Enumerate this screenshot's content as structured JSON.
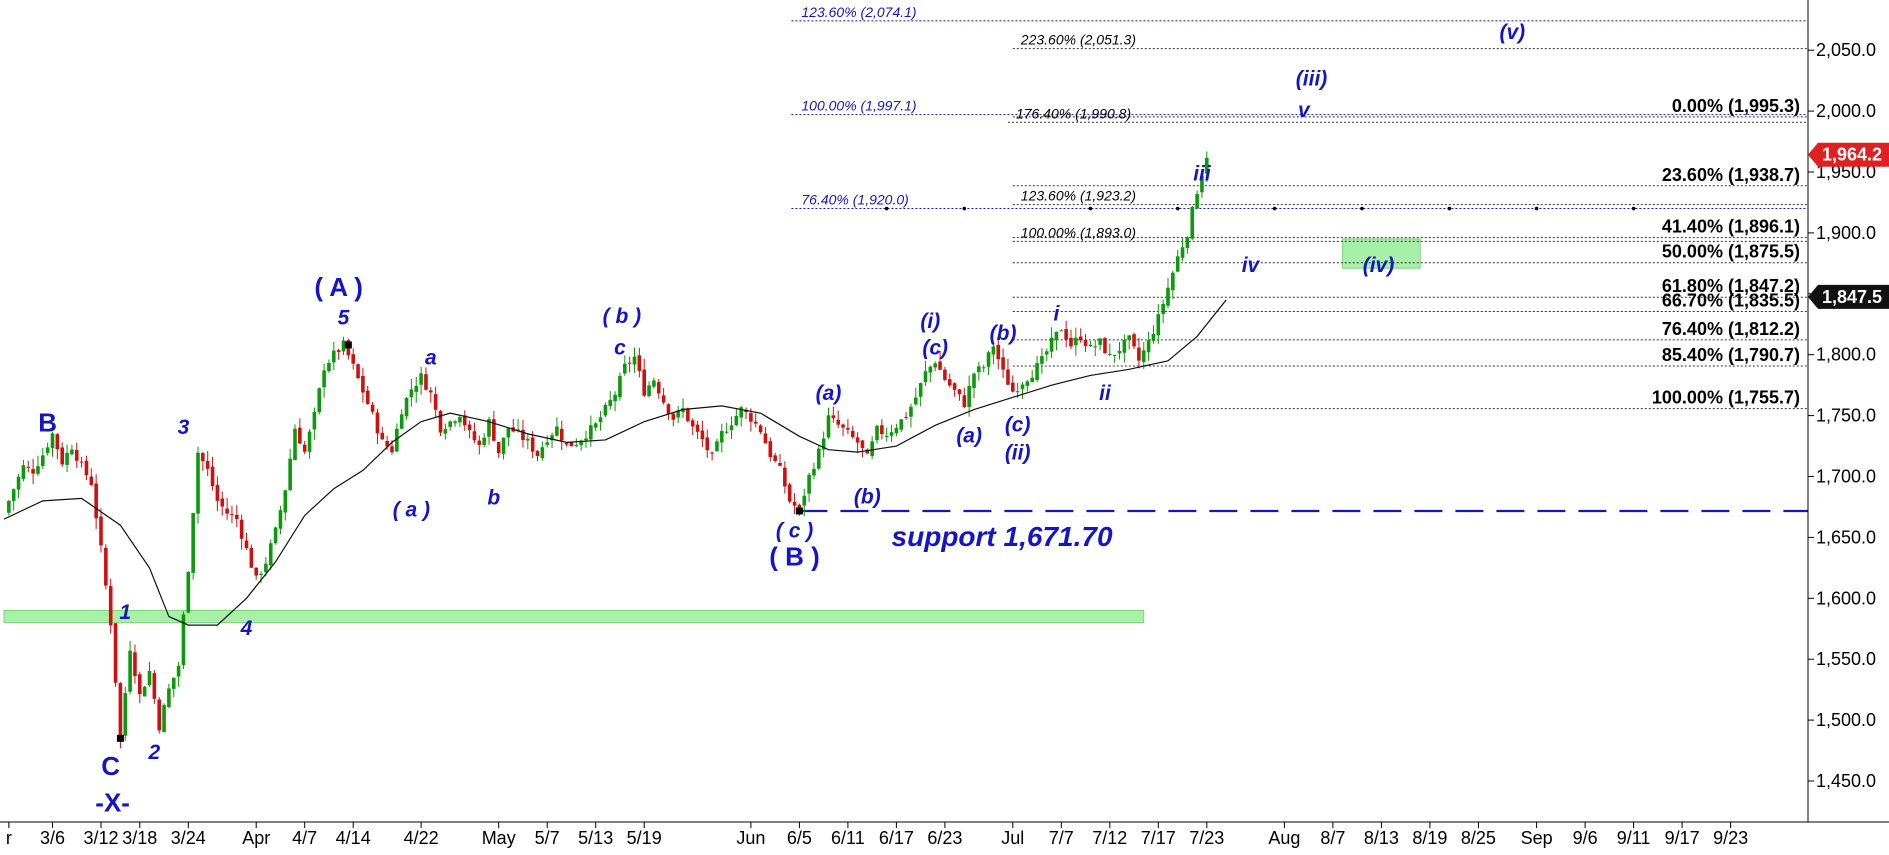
{
  "chart_data": {
    "type": "candlestick",
    "title": "",
    "y_axis": {
      "position": "right",
      "range": [
        1405,
        2090
      ],
      "ticks": [
        1450,
        1500,
        1550,
        1600,
        1650,
        1700,
        1750,
        1800,
        1850,
        1900,
        1950,
        2000,
        2050
      ],
      "tick_labels": [
        "1,450.0",
        "1,500.0",
        "1,550.0",
        "1,600.0",
        "1,650.0",
        "1,700.0",
        "1,750.0",
        "1,800.0",
        "1,850.0",
        "1,900.0",
        "1,950.0",
        "2,000.0",
        "2,050.0"
      ]
    },
    "x_axis": {
      "domain": [
        0,
        200
      ],
      "ticks": [
        {
          "label": "r",
          "pos": 0.5
        },
        {
          "label": "3/6",
          "pos": 5
        },
        {
          "label": "3/12",
          "pos": 10
        },
        {
          "label": "3/18",
          "pos": 14
        },
        {
          "label": "3/24",
          "pos": 19
        },
        {
          "label": "Apr",
          "pos": 26
        },
        {
          "label": "4/7",
          "pos": 31
        },
        {
          "label": "4/14",
          "pos": 36
        },
        {
          "label": "4/22",
          "pos": 43
        },
        {
          "label": "May",
          "pos": 51
        },
        {
          "label": "5/7",
          "pos": 56
        },
        {
          "label": "5/13",
          "pos": 61
        },
        {
          "label": "5/19",
          "pos": 66
        },
        {
          "label": "Jun",
          "pos": 77
        },
        {
          "label": "6/5",
          "pos": 82
        },
        {
          "label": "6/11",
          "pos": 87
        },
        {
          "label": "6/17",
          "pos": 92
        },
        {
          "label": "6/23",
          "pos": 97
        },
        {
          "label": "Jul",
          "pos": 104
        },
        {
          "label": "7/7",
          "pos": 109
        },
        {
          "label": "7/12",
          "pos": 114
        },
        {
          "label": "7/17",
          "pos": 119
        },
        {
          "label": "7/23",
          "pos": 124
        },
        {
          "label": "Aug",
          "pos": 132
        },
        {
          "label": "8/7",
          "pos": 137
        },
        {
          "label": "8/13",
          "pos": 142
        },
        {
          "label": "8/19",
          "pos": 147
        },
        {
          "label": "8/25",
          "pos": 152
        },
        {
          "label": "Sep",
          "pos": 158
        },
        {
          "label": "9/6",
          "pos": 163
        },
        {
          "label": "9/11",
          "pos": 168
        },
        {
          "label": "9/17",
          "pos": 173
        },
        {
          "label": "9/23",
          "pos": 178
        }
      ]
    },
    "price_path": [
      [
        0,
        1670
      ],
      [
        1,
        1690
      ],
      [
        2,
        1708
      ],
      [
        3,
        1705
      ],
      [
        4,
        1718
      ],
      [
        5,
        1735
      ],
      [
        6,
        1712
      ],
      [
        7,
        1725
      ],
      [
        8,
        1708
      ],
      [
        9,
        1695
      ],
      [
        10,
        1640
      ],
      [
        11,
        1580
      ],
      [
        12,
        1485
      ],
      [
        13,
        1560
      ],
      [
        14,
        1520
      ],
      [
        15,
        1540
      ],
      [
        16,
        1495
      ],
      [
        17,
        1525
      ],
      [
        18,
        1545
      ],
      [
        19,
        1625
      ],
      [
        20,
        1720
      ],
      [
        21,
        1705
      ],
      [
        22,
        1680
      ],
      [
        23,
        1670
      ],
      [
        24,
        1665
      ],
      [
        25,
        1640
      ],
      [
        26,
        1615
      ],
      [
        27,
        1630
      ],
      [
        28,
        1655
      ],
      [
        29,
        1690
      ],
      [
        30,
        1740
      ],
      [
        31,
        1720
      ],
      [
        32,
        1750
      ],
      [
        33,
        1790
      ],
      [
        34,
        1800
      ],
      [
        35,
        1808
      ],
      [
        36,
        1790
      ],
      [
        37,
        1770
      ],
      [
        38,
        1750
      ],
      [
        39,
        1728
      ],
      [
        40,
        1722
      ],
      [
        41,
        1755
      ],
      [
        42,
        1772
      ],
      [
        43,
        1782
      ],
      [
        44,
        1768
      ],
      [
        45,
        1740
      ],
      [
        46,
        1745
      ],
      [
        47,
        1752
      ],
      [
        48,
        1735
      ],
      [
        49,
        1725
      ],
      [
        50,
        1745
      ],
      [
        51,
        1720
      ],
      [
        52,
        1740
      ],
      [
        53,
        1735
      ],
      [
        54,
        1728
      ],
      [
        55,
        1718
      ],
      [
        56,
        1732
      ],
      [
        57,
        1740
      ],
      [
        58,
        1725
      ],
      [
        59,
        1728
      ],
      [
        60,
        1735
      ],
      [
        61,
        1742
      ],
      [
        62,
        1755
      ],
      [
        63,
        1768
      ],
      [
        64,
        1790
      ],
      [
        65,
        1798
      ],
      [
        66,
        1770
      ],
      [
        67,
        1780
      ],
      [
        68,
        1762
      ],
      [
        69,
        1748
      ],
      [
        70,
        1755
      ],
      [
        71,
        1740
      ],
      [
        72,
        1730
      ],
      [
        73,
        1715
      ],
      [
        74,
        1735
      ],
      [
        75,
        1745
      ],
      [
        76,
        1755
      ],
      [
        77,
        1748
      ],
      [
        78,
        1738
      ],
      [
        79,
        1718
      ],
      [
        80,
        1705
      ],
      [
        81,
        1680
      ],
      [
        82,
        1672
      ],
      [
        83,
        1700
      ],
      [
        84,
        1720
      ],
      [
        85,
        1748
      ],
      [
        86,
        1742
      ],
      [
        87,
        1735
      ],
      [
        88,
        1728
      ],
      [
        89,
        1715
      ],
      [
        90,
        1738
      ],
      [
        91,
        1735
      ],
      [
        92,
        1742
      ],
      [
        93,
        1750
      ],
      [
        94,
        1765
      ],
      [
        95,
        1785
      ],
      [
        96,
        1795
      ],
      [
        97,
        1780
      ],
      [
        98,
        1770
      ],
      [
        99,
        1760
      ],
      [
        100,
        1785
      ],
      [
        101,
        1790
      ],
      [
        102,
        1808
      ],
      [
        103,
        1785
      ],
      [
        104,
        1770
      ],
      [
        105,
        1778
      ],
      [
        106,
        1785
      ],
      [
        107,
        1795
      ],
      [
        108,
        1810
      ],
      [
        109,
        1822
      ],
      [
        110,
        1808
      ],
      [
        111,
        1815
      ],
      [
        112,
        1805
      ],
      [
        113,
        1810
      ],
      [
        114,
        1798
      ],
      [
        115,
        1805
      ],
      [
        116,
        1812
      ],
      [
        117,
        1795
      ],
      [
        118,
        1810
      ],
      [
        119,
        1830
      ],
      [
        120,
        1855
      ],
      [
        121,
        1880
      ],
      [
        122,
        1900
      ],
      [
        123,
        1935
      ],
      [
        124,
        1964
      ]
    ],
    "moving_average": [
      [
        0,
        1665
      ],
      [
        4,
        1680
      ],
      [
        8,
        1682
      ],
      [
        12,
        1660
      ],
      [
        15,
        1625
      ],
      [
        17,
        1585
      ],
      [
        19,
        1578
      ],
      [
        22,
        1578
      ],
      [
        25,
        1600
      ],
      [
        28,
        1630
      ],
      [
        31,
        1668
      ],
      [
        34,
        1690
      ],
      [
        37,
        1705
      ],
      [
        40,
        1728
      ],
      [
        43,
        1745
      ],
      [
        46,
        1752
      ],
      [
        50,
        1745
      ],
      [
        54,
        1735
      ],
      [
        58,
        1728
      ],
      [
        62,
        1730
      ],
      [
        66,
        1745
      ],
      [
        70,
        1755
      ],
      [
        74,
        1758
      ],
      [
        78,
        1752
      ],
      [
        82,
        1733
      ],
      [
        85,
        1722
      ],
      [
        88,
        1720
      ],
      [
        92,
        1725
      ],
      [
        96,
        1742
      ],
      [
        100,
        1755
      ],
      [
        104,
        1765
      ],
      [
        108,
        1775
      ],
      [
        112,
        1783
      ],
      [
        116,
        1788
      ],
      [
        120,
        1795
      ],
      [
        123,
        1815
      ],
      [
        126,
        1845
      ]
    ],
    "last_price": {
      "value": 1964.2,
      "label": "1,964.2",
      "color": "#e02020"
    },
    "level_marker": {
      "value": 1847.5,
      "label": "1,847.5",
      "color": "#111111"
    },
    "support": {
      "value": 1671.7,
      "label": "support 1,671.70",
      "color": "#1515c8"
    },
    "zones": [
      {
        "x0": 0,
        "x1": 117.5,
        "y0": 1580,
        "y1": 1590,
        "color": "#a8efa8"
      },
      {
        "x0": 138,
        "x1": 146,
        "y0": 1871,
        "y1": 1895,
        "color": "#a8efa8"
      }
    ],
    "fib_right": [
      {
        "value": 1995.3,
        "label": "0.00% (1,995.3)"
      },
      {
        "value": 1938.7,
        "label": "23.60% (1,938.7)"
      },
      {
        "value": 1896.1,
        "label": "41.40% (1,896.1)"
      },
      {
        "value": 1875.5,
        "label": "50.00% (1,875.5)"
      },
      {
        "value": 1847.2,
        "label": "61.80% (1,847.2)"
      },
      {
        "value": 1835.5,
        "label": "66.70% (1,835.5)"
      },
      {
        "value": 1812.2,
        "label": "76.40% (1,812.2)"
      },
      {
        "value": 1790.7,
        "label": "85.40% (1,790.7)"
      },
      {
        "value": 1755.7,
        "label": "100.00% (1,755.7)"
      }
    ],
    "fib_mid": [
      {
        "value": 2051.3,
        "label": "223.60% (2,051.3)"
      },
      {
        "value": 1990.8,
        "label": "176.40% (1,990.8)"
      },
      {
        "value": 1923.2,
        "label": "123.60% (1,923.2)"
      },
      {
        "value": 1893.0,
        "label": "100.00% (1,893.0)"
      }
    ],
    "fib_blue": [
      {
        "value": 2074.1,
        "label": "123.60% (2,074.1)"
      },
      {
        "value": 1997.1,
        "label": "100.00% (1,997.1)"
      },
      {
        "value": 1920.0,
        "label": "76.40% (1,920.0)"
      }
    ],
    "wave_labels": [
      {
        "text": "B",
        "x": 4.5,
        "y": 1737,
        "style": "big"
      },
      {
        "text": "1",
        "x": 12.5,
        "y": 1583,
        "style": "wave"
      },
      {
        "text": "2",
        "x": 15.5,
        "y": 1468,
        "style": "wave"
      },
      {
        "text": "3",
        "x": 18.5,
        "y": 1735,
        "style": "wave"
      },
      {
        "text": "4",
        "x": 25,
        "y": 1570,
        "style": "wave"
      },
      {
        "text": "C",
        "x": 11,
        "y": 1455,
        "style": "big"
      },
      {
        "text": "-X-",
        "x": 11.2,
        "y": 1425,
        "style": "big"
      },
      {
        "text": "5",
        "x": 35,
        "y": 1825,
        "style": "wave"
      },
      {
        "text": "( A )",
        "x": 34.5,
        "y": 1848,
        "style": "big"
      },
      {
        "text": "a",
        "x": 44,
        "y": 1792,
        "style": "wave"
      },
      {
        "text": "( a )",
        "x": 42,
        "y": 1667,
        "style": "wave"
      },
      {
        "text": "b",
        "x": 50.5,
        "y": 1677,
        "style": "wave"
      },
      {
        "text": "c",
        "x": 63.5,
        "y": 1800,
        "style": "wave"
      },
      {
        "text": "( b )",
        "x": 63.7,
        "y": 1826,
        "style": "wave"
      },
      {
        "text": "( c )",
        "x": 81.5,
        "y": 1650,
        "style": "wave"
      },
      {
        "text": "( B )",
        "x": 81.5,
        "y": 1627,
        "style": "big"
      },
      {
        "text": "(a)",
        "x": 85,
        "y": 1763,
        "style": "wave"
      },
      {
        "text": "(b)",
        "x": 89,
        "y": 1678,
        "style": "wave"
      },
      {
        "text": "(a)",
        "x": 99.5,
        "y": 1728,
        "style": "wave"
      },
      {
        "text": "(c)",
        "x": 96,
        "y": 1800,
        "style": "wave"
      },
      {
        "text": "(i)",
        "x": 95.5,
        "y": 1822,
        "style": "wave"
      },
      {
        "text": "(b)",
        "x": 103,
        "y": 1812,
        "style": "wave"
      },
      {
        "text": "(c)",
        "x": 104.5,
        "y": 1737,
        "style": "wave"
      },
      {
        "text": "(ii)",
        "x": 104.5,
        "y": 1714,
        "style": "wave"
      },
      {
        "text": "i",
        "x": 108.5,
        "y": 1828,
        "style": "wave"
      },
      {
        "text": "ii",
        "x": 113.5,
        "y": 1763,
        "style": "wave"
      },
      {
        "text": "iii",
        "x": 123.5,
        "y": 1943,
        "style": "wave"
      },
      {
        "text": "iv",
        "x": 128.5,
        "y": 1868,
        "style": "wave"
      },
      {
        "text": "(iv)",
        "x": 141.7,
        "y": 1868,
        "style": "wave"
      },
      {
        "text": "v",
        "x": 134,
        "y": 1995,
        "style": "wave"
      },
      {
        "text": "(iii)",
        "x": 134.8,
        "y": 2021,
        "style": "wave"
      },
      {
        "text": "(v)",
        "x": 155.5,
        "y": 2059,
        "style": "wave"
      }
    ],
    "pivot_dots": [
      {
        "x": 12,
        "y": 1485
      },
      {
        "x": 35.5,
        "y": 1808
      },
      {
        "x": 82,
        "y": 1671.7
      }
    ]
  }
}
